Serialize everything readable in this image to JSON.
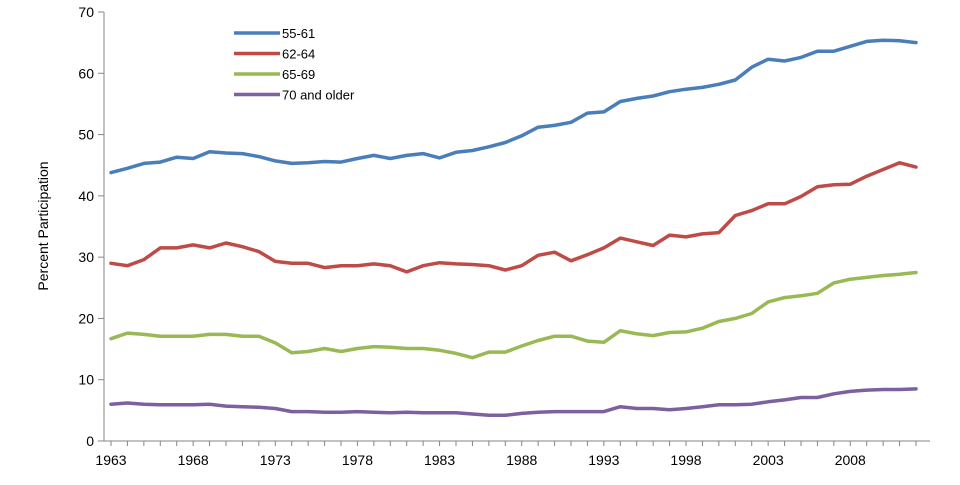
{
  "chart_data": {
    "type": "line",
    "title": "",
    "xlabel": "",
    "ylabel": "Percent Participation",
    "ylim": [
      0,
      70
    ],
    "yticks": [
      "0",
      "10",
      "20",
      "30",
      "40",
      "50",
      "60",
      "70"
    ],
    "xlim": [
      1963,
      2012
    ],
    "xticks": [
      "1963",
      "1968",
      "1973",
      "1978",
      "1983",
      "1988",
      "1993",
      "1998",
      "2003",
      "2008"
    ],
    "grid": false,
    "legend_position": "top-left",
    "x": [
      1963,
      1964,
      1965,
      1966,
      1967,
      1968,
      1969,
      1970,
      1971,
      1972,
      1973,
      1974,
      1975,
      1976,
      1977,
      1978,
      1979,
      1980,
      1981,
      1982,
      1983,
      1984,
      1985,
      1986,
      1987,
      1988,
      1989,
      1990,
      1991,
      1992,
      1993,
      1994,
      1995,
      1996,
      1997,
      1998,
      1999,
      2000,
      2001,
      2002,
      2003,
      2004,
      2005,
      2006,
      2007,
      2008,
      2009,
      2010,
      2011,
      2012
    ],
    "series": [
      {
        "name": "55-61",
        "color": "#4a7ebb",
        "values": [
          43.8,
          44.5,
          45.3,
          45.5,
          46.3,
          46.1,
          47.2,
          47.0,
          46.9,
          46.4,
          45.7,
          45.3,
          45.4,
          45.6,
          45.5,
          46.1,
          46.6,
          46.1,
          46.6,
          46.9,
          46.2,
          47.1,
          47.4,
          48.0,
          48.7,
          49.8,
          51.2,
          51.5,
          52.0,
          53.5,
          53.7,
          55.4,
          55.9,
          56.3,
          57.0,
          57.4,
          57.7,
          58.2,
          58.9,
          61.0,
          62.3,
          62.0,
          62.6,
          63.6,
          63.6,
          64.4,
          65.2,
          65.4,
          65.3,
          65.0
        ]
      },
      {
        "name": "62-64",
        "color": "#be4b48",
        "values": [
          29.0,
          28.6,
          29.6,
          31.5,
          31.5,
          32.0,
          31.5,
          32.3,
          31.7,
          30.9,
          29.3,
          29.0,
          29.0,
          28.3,
          28.6,
          28.6,
          28.9,
          28.6,
          27.6,
          28.6,
          29.1,
          28.9,
          28.8,
          28.6,
          27.9,
          28.6,
          30.3,
          30.8,
          29.4,
          30.4,
          31.5,
          33.1,
          32.5,
          31.9,
          33.6,
          33.3,
          33.8,
          34.0,
          36.8,
          37.6,
          38.7,
          38.7,
          39.9,
          41.5,
          41.8,
          41.9,
          43.2,
          44.3,
          45.4,
          44.7
        ]
      },
      {
        "name": "65-69",
        "color": "#98b954",
        "values": [
          16.7,
          17.6,
          17.4,
          17.1,
          17.1,
          17.1,
          17.4,
          17.4,
          17.1,
          17.1,
          16.0,
          14.4,
          14.6,
          15.1,
          14.6,
          15.1,
          15.4,
          15.3,
          15.1,
          15.1,
          14.8,
          14.3,
          13.6,
          14.5,
          14.5,
          15.5,
          16.4,
          17.1,
          17.1,
          16.3,
          16.1,
          18.0,
          17.5,
          17.2,
          17.7,
          17.8,
          18.4,
          19.5,
          20.0,
          20.8,
          22.7,
          23.4,
          23.7,
          24.1,
          25.8,
          26.4,
          26.7,
          27.0,
          27.2,
          27.5
        ]
      },
      {
        "name": "70 and older",
        "color": "#7d60a0",
        "values": [
          6.0,
          6.2,
          6.0,
          5.9,
          5.9,
          5.9,
          6.0,
          5.7,
          5.6,
          5.5,
          5.3,
          4.8,
          4.8,
          4.7,
          4.7,
          4.8,
          4.7,
          4.6,
          4.7,
          4.6,
          4.6,
          4.6,
          4.4,
          4.2,
          4.2,
          4.5,
          4.7,
          4.8,
          4.8,
          4.8,
          4.8,
          5.6,
          5.3,
          5.3,
          5.1,
          5.3,
          5.6,
          5.9,
          5.9,
          6.0,
          6.4,
          6.7,
          7.1,
          7.1,
          7.7,
          8.1,
          8.3,
          8.4,
          8.4,
          8.5
        ]
      }
    ]
  }
}
